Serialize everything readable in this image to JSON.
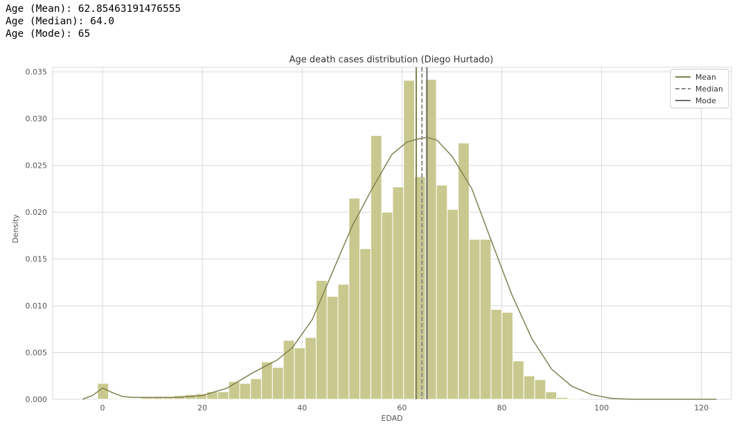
{
  "stats": {
    "mean_line": "Age (Mean): 62.85463191476555",
    "median_line": "Age (Median): 64.0",
    "mode_line": "Age (Mode): 65"
  },
  "colors": {
    "bar": "#c9c98f",
    "kde": "#808052",
    "grid": "#d8d8d8",
    "mean": "#808052",
    "median": "#8a8a8a",
    "mode": "#6f6f6f"
  },
  "chart_data": {
    "type": "bar",
    "title": "Age death cases distribution (Diego Hurtado)",
    "xlabel": "EDAD",
    "ylabel": "Density",
    "xlim": [
      -10,
      126
    ],
    "ylim": [
      0,
      0.0355
    ],
    "grid": true,
    "legend_position": "top-right",
    "xticks": [
      0,
      20,
      40,
      60,
      80,
      100,
      120
    ],
    "yticks": [
      0.0,
      0.005,
      0.01,
      0.015,
      0.02,
      0.025,
      0.03,
      0.035
    ],
    "ytick_labels": [
      "0.000",
      "0.005",
      "0.010",
      "0.015",
      "0.020",
      "0.025",
      "0.030",
      "0.035"
    ],
    "bins": {
      "start": -1,
      "width": 2.19,
      "densities": [
        0.0017,
        0.0001,
        0.0001,
        0.0001,
        0.0002,
        0.0002,
        0.0003,
        0.0004,
        0.0005,
        0.0006,
        0.0008,
        0.0008,
        0.0019,
        0.0017,
        0.0022,
        0.004,
        0.0034,
        0.0063,
        0.0055,
        0.0066,
        0.0127,
        0.011,
        0.0123,
        0.0215,
        0.0161,
        0.0282,
        0.02,
        0.0227,
        0.0341,
        0.0238,
        0.0342,
        0.0229,
        0.0203,
        0.0274,
        0.0171,
        0.0171,
        0.0096,
        0.0093,
        0.0041,
        0.0025,
        0.0021,
        0.0008,
        0.0002,
        0.0001,
        0.0
      ]
    },
    "kde": {
      "x": [
        -4,
        -2,
        0,
        2,
        4,
        6,
        10,
        15,
        20,
        25,
        30,
        35,
        38,
        42,
        46,
        50,
        54,
        58,
        61,
        63,
        65,
        67,
        70,
        74,
        78,
        82,
        86,
        90,
        94,
        98,
        102,
        106,
        110,
        123
      ],
      "y": [
        0.0,
        0.0004,
        0.0012,
        0.0007,
        0.0003,
        0.0002,
        0.0002,
        0.0002,
        0.0004,
        0.0012,
        0.0028,
        0.0042,
        0.0055,
        0.0085,
        0.0135,
        0.0185,
        0.0225,
        0.0262,
        0.0275,
        0.0278,
        0.028,
        0.0277,
        0.026,
        0.0225,
        0.0168,
        0.0112,
        0.0065,
        0.0032,
        0.0014,
        0.0005,
        0.0001,
        0.0,
        0.0,
        0.0
      ]
    },
    "vlines": [
      {
        "name": "Mean",
        "x": 62.85463191476555,
        "style": "solid"
      },
      {
        "name": "Median",
        "x": 64.0,
        "style": "dashed"
      },
      {
        "name": "Mode",
        "x": 65,
        "style": "solid"
      }
    ],
    "legend": [
      "Mean",
      "Median",
      "Mode"
    ]
  }
}
